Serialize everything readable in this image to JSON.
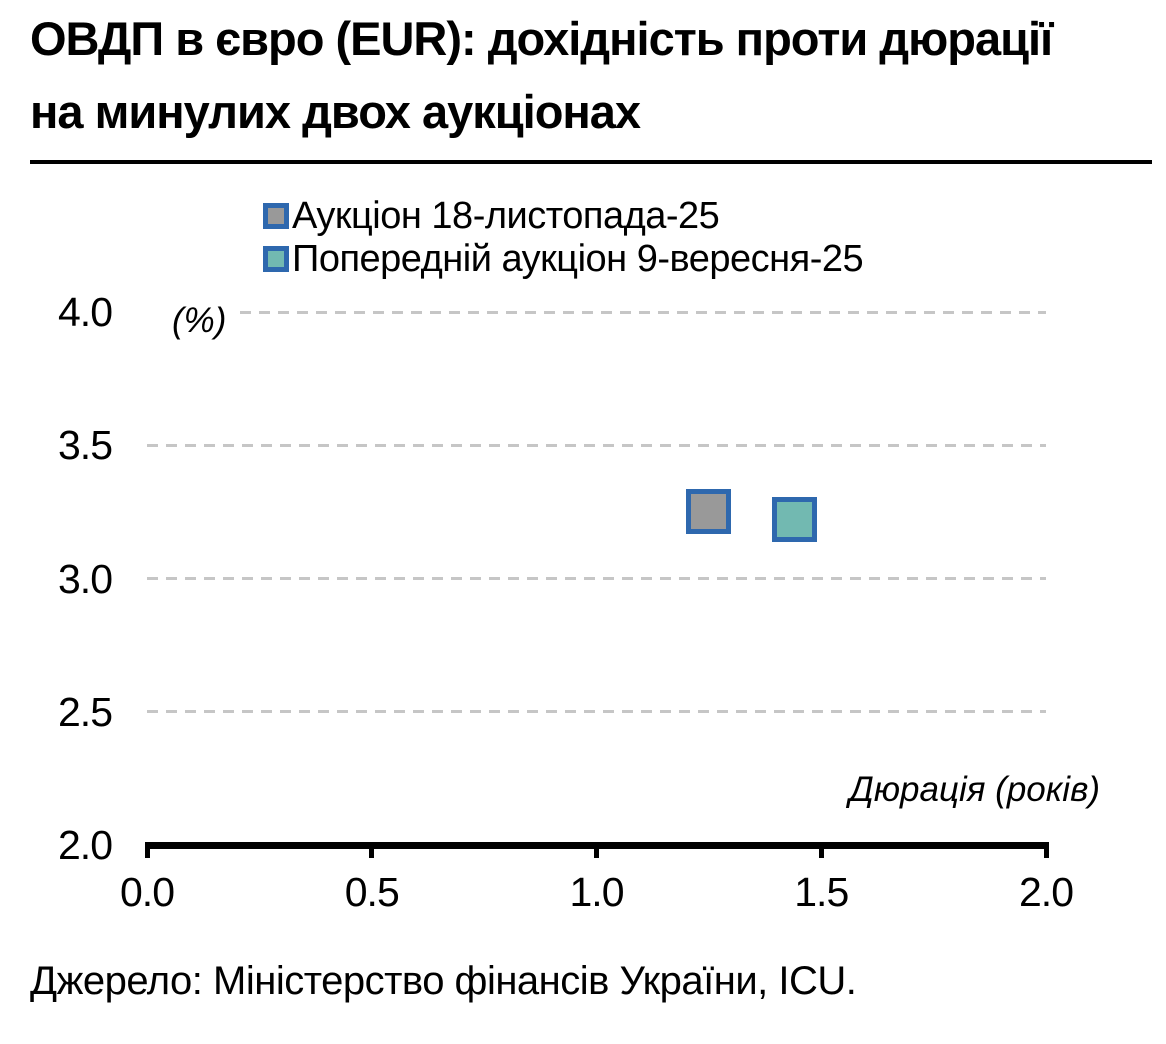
{
  "title": "ОВДП в євро (EUR): дохідність проти дюрації\nна минулих двох аукціонах",
  "source": "Джерело: Міністерство фінансів України, ICU.",
  "colors": {
    "marker_border": "#2e68ae",
    "series1_fill": "#999999",
    "series2_fill": "#72b9b1",
    "gridline": "#c6c6c6",
    "axis": "#000000",
    "text": "#000000",
    "background": "#ffffff"
  },
  "chart_data": {
    "type": "scatter",
    "title": "ОВДП в євро (EUR): дохідність проти дюрації на минулих двох аукціонах",
    "xlabel": "Дюрація (років)",
    "ylabel": "(%)",
    "xlim": [
      0.0,
      2.0
    ],
    "ylim": [
      2.0,
      4.0
    ],
    "x_ticks": [
      0.0,
      0.5,
      1.0,
      1.5,
      2.0
    ],
    "x_tick_labels": [
      "0.0",
      "0.5",
      "1.0",
      "1.5",
      "2.0"
    ],
    "y_ticks": [
      2.0,
      2.5,
      3.0,
      3.5,
      4.0
    ],
    "y_tick_labels": [
      "2.0",
      "2.5",
      "3.0",
      "3.5",
      "4.0"
    ],
    "grid": "horizontal-dashed",
    "legend_position": "top",
    "series": [
      {
        "name": "Аукціон 18-листопада-25",
        "marker": "square",
        "marker_fill": "#999999",
        "marker_border": "#2e68ae",
        "points": [
          {
            "x": 1.25,
            "y": 3.25
          }
        ]
      },
      {
        "name": "Попередній аукціон 9-вересня-25",
        "marker": "square",
        "marker_fill": "#72b9b1",
        "marker_border": "#2e68ae",
        "points": [
          {
            "x": 1.44,
            "y": 3.22
          }
        ]
      }
    ]
  }
}
